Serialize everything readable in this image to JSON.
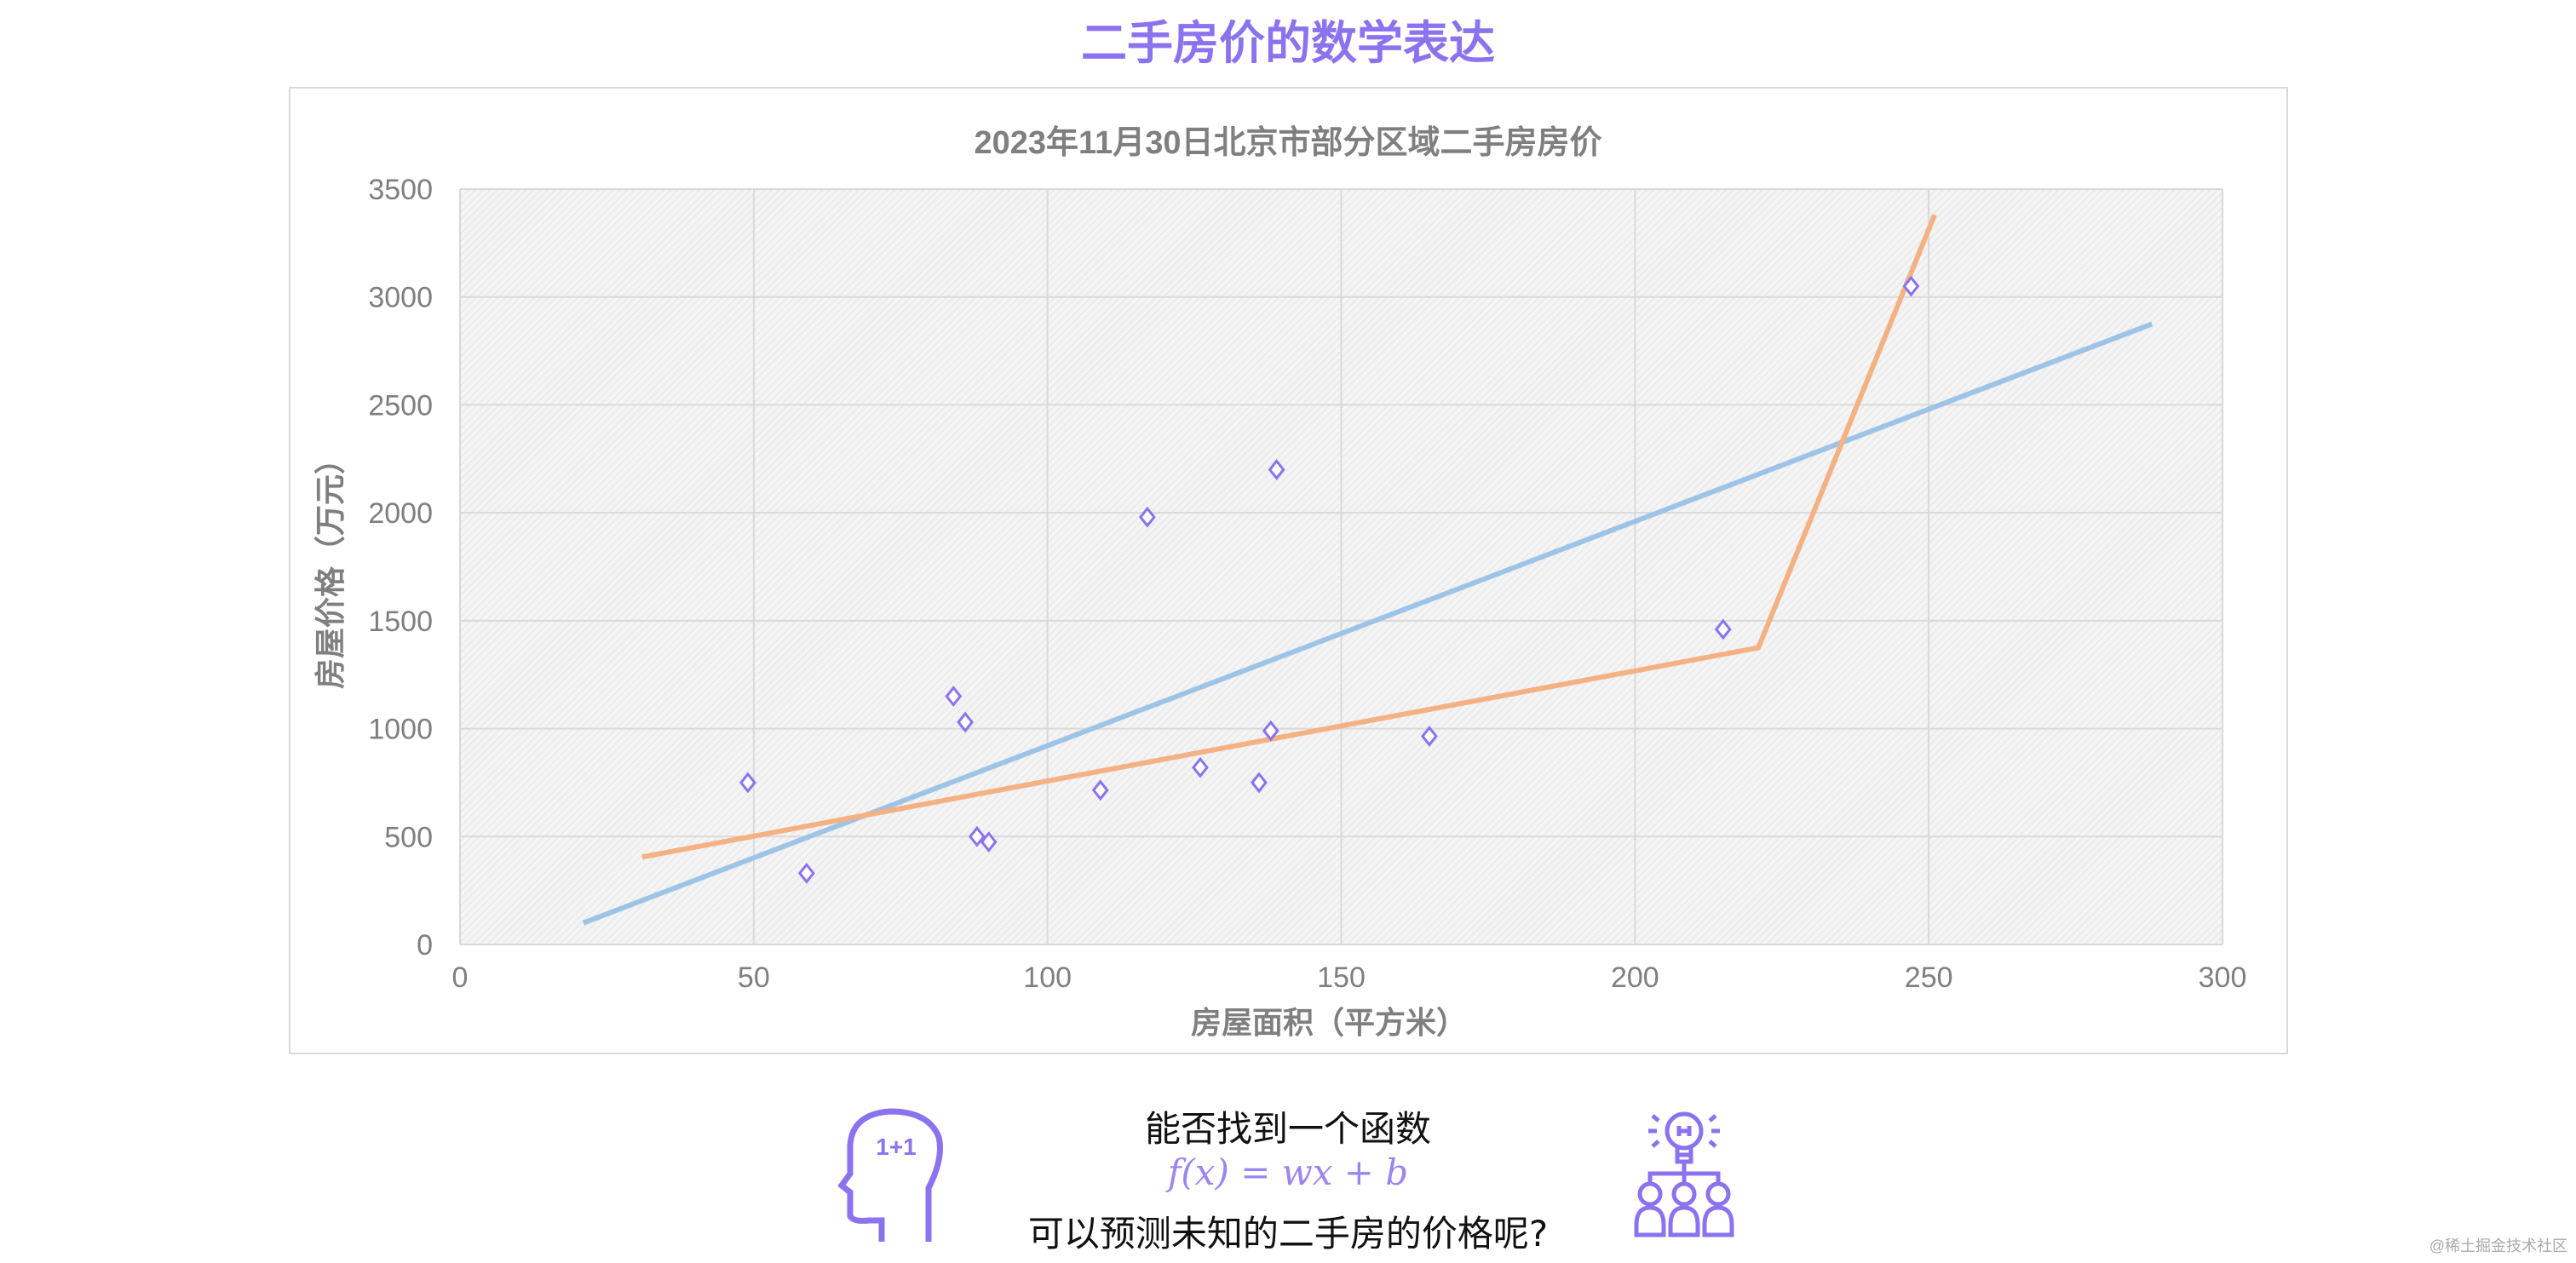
{
  "page": {
    "title": "二手房价的数学表达"
  },
  "chart_data": {
    "type": "scatter",
    "title": "2023年11月30日北京市部分区域二手房房价",
    "xlabel": "房屋面积（平方米）",
    "ylabel": "房屋价格（万元）",
    "xlim": [
      0,
      300
    ],
    "ylim": [
      0,
      3500
    ],
    "xticks": [
      "0",
      "50",
      "100",
      "150",
      "200",
      "250",
      "300"
    ],
    "yticks": [
      "0",
      "500",
      "1000",
      "1500",
      "2000",
      "2500",
      "3000",
      "3500"
    ],
    "grid": true,
    "points": [
      {
        "x": 49,
        "y": 750
      },
      {
        "x": 59,
        "y": 330
      },
      {
        "x": 84,
        "y": 1150
      },
      {
        "x": 86,
        "y": 1030
      },
      {
        "x": 88,
        "y": 500
      },
      {
        "x": 90,
        "y": 475
      },
      {
        "x": 109,
        "y": 715
      },
      {
        "x": 117,
        "y": 1980
      },
      {
        "x": 126,
        "y": 820
      },
      {
        "x": 136,
        "y": 750
      },
      {
        "x": 138,
        "y": 990
      },
      {
        "x": 139,
        "y": 2200
      },
      {
        "x": 165,
        "y": 965
      },
      {
        "x": 215,
        "y": 1460
      },
      {
        "x": 247,
        "y": 3050
      }
    ],
    "lines": [
      {
        "color": "#9dc3e6",
        "points": [
          {
            "x": 21,
            "y": 100
          },
          {
            "x": 288,
            "y": 2875
          }
        ]
      },
      {
        "color": "#f4b183",
        "points": [
          {
            "x": 31,
            "y": 405
          },
          {
            "x": 221,
            "y": 1375
          },
          {
            "x": 251,
            "y": 3380
          }
        ]
      }
    ],
    "marker_color": "#8b72ee",
    "marker": "diamond-outline"
  },
  "footer": {
    "question_line1": "能否找到一个函数",
    "formula": "f(x) = wx + b",
    "question_line2": "可以预测未知的二手房的价格呢?",
    "left_icon": "head-thinking-icon",
    "left_icon_text": "1+1",
    "right_icon": "lightbulb-team-icon",
    "accent": "#8b72ee"
  },
  "watermark": "@稀土掘金技术社区"
}
